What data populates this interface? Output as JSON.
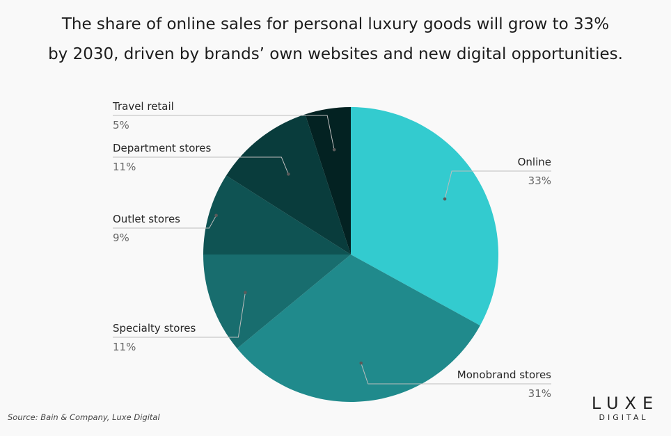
{
  "title_lines": [
    "The share of online sales for personal luxury goods will grow to 33%",
    "by 2030, driven by brands’ own websites and new digital opportunities."
  ],
  "source": "Source: Bain & Company, Luxe Digital",
  "logo": {
    "primary": "LUXE",
    "secondary": "DIGITAL"
  },
  "chart_data": {
    "type": "pie",
    "title": "The share of online sales for personal luxury goods will grow to 33% by 2030, driven by brands’ own websites and new digital opportunities.",
    "slices": [
      {
        "label": "Online",
        "value": 33,
        "display": "33%",
        "color": "#33cbcf"
      },
      {
        "label": "Monobrand stores",
        "value": 31,
        "display": "31%",
        "color": "#208a8c"
      },
      {
        "label": "Specialty stores",
        "value": 11,
        "display": "11%",
        "color": "#186d6e"
      },
      {
        "label": "Outlet stores",
        "value": 9,
        "display": "9%",
        "color": "#0f5353"
      },
      {
        "label": "Department stores",
        "value": 11,
        "display": "11%",
        "color": "#093c3c"
      },
      {
        "label": "Travel retail",
        "value": 5,
        "display": "5%",
        "color": "#032222"
      }
    ]
  }
}
